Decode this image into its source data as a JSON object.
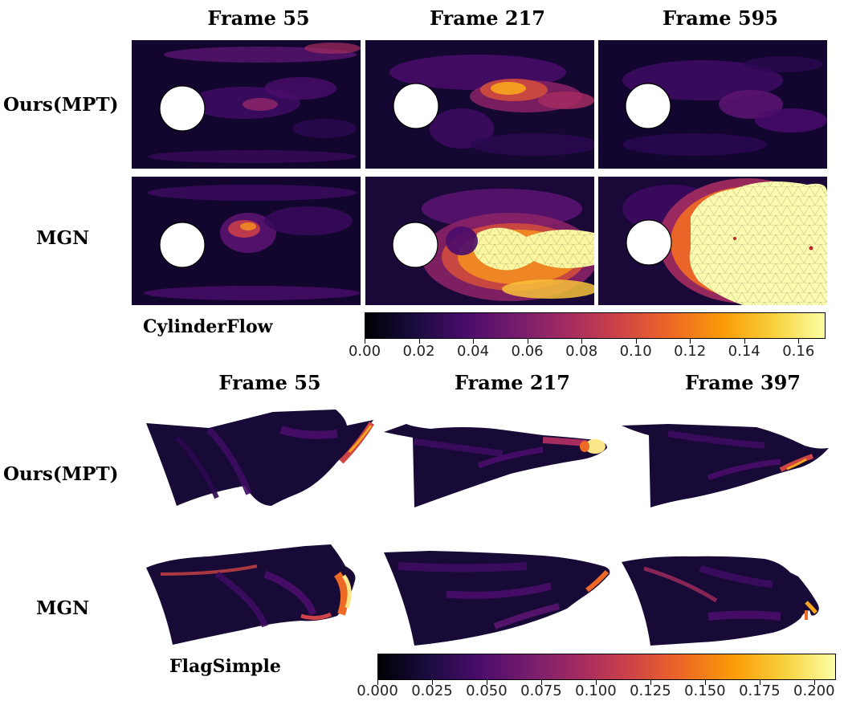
{
  "colors": {
    "inferno": [
      "#000004",
      "#1b0c41",
      "#4a0c6b",
      "#781c6d",
      "#a52c60",
      "#cf4446",
      "#ed6925",
      "#fb9b06",
      "#f7d13d",
      "#fcffa4"
    ],
    "mesh_line": "#2a2a2a",
    "cylinder": "#ffffff"
  },
  "cylinder_flow": {
    "dataset_label": "CylinderFlow",
    "column_titles": [
      "Frame 55",
      "Frame 217",
      "Frame 595"
    ],
    "row_titles": [
      "Ours(MPT)",
      "MGN"
    ],
    "colorbar_ticks": [
      "0.00",
      "0.02",
      "0.04",
      "0.06",
      "0.08",
      "0.10",
      "0.12",
      "0.14",
      "0.16"
    ],
    "colorbar_range": [
      0.0,
      0.17
    ]
  },
  "flag_simple": {
    "dataset_label": "FlagSimple",
    "column_titles": [
      "Frame 55",
      "Frame 217",
      "Frame 397"
    ],
    "row_titles": [
      "Ours(MPT)",
      "MGN"
    ],
    "colorbar_ticks": [
      "0.000",
      "0.025",
      "0.050",
      "0.075",
      "0.100",
      "0.125",
      "0.150",
      "0.175",
      "0.200"
    ],
    "colorbar_range": [
      0.0,
      0.21
    ]
  }
}
